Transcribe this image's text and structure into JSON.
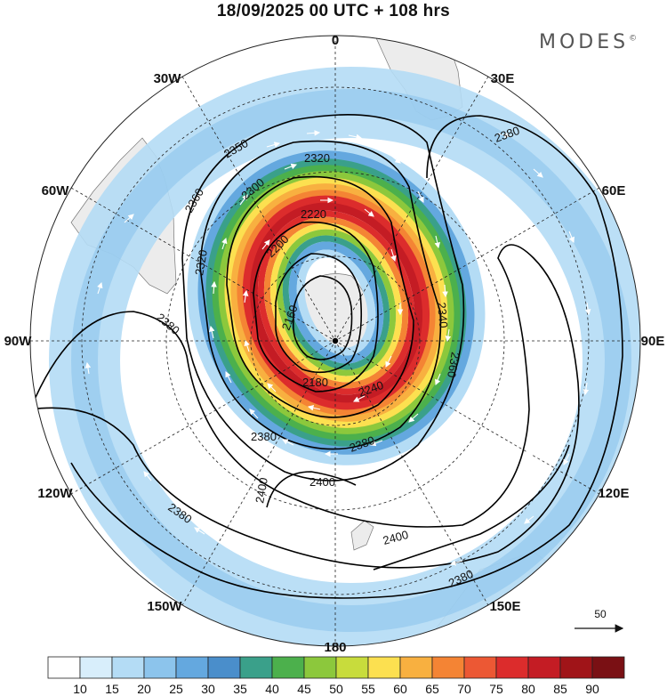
{
  "header": {
    "title": "18/09/2025  00 UTC  + 108 hrs",
    "brand": "MODES",
    "brand_mark": "©"
  },
  "map": {
    "projection": "south polar stereographic",
    "longitude_labels": [
      "0",
      "30E",
      "60E",
      "90E",
      "120E",
      "150E",
      "180",
      "150W",
      "120W",
      "90W",
      "60W",
      "30W"
    ],
    "contour_labels": [
      "2160",
      "2180",
      "2200",
      "2220",
      "2240",
      "2260",
      "2280",
      "2300",
      "2320",
      "2340",
      "2350",
      "2360",
      "2380",
      "2400"
    ],
    "contour_labels_rendered": [
      {
        "text": "2350",
        "id": "c2350"
      },
      {
        "text": "2320",
        "id": "c2320"
      },
      {
        "text": "2300",
        "id": "c2300"
      },
      {
        "text": "2220",
        "id": "c2220"
      },
      {
        "text": "2200",
        "id": "c2200"
      },
      {
        "text": "2360",
        "id": "c2360a"
      },
      {
        "text": "2320",
        "id": "c2320b"
      },
      {
        "text": "2160",
        "id": "c2160"
      },
      {
        "text": "2180",
        "id": "c2180"
      },
      {
        "text": "2240",
        "id": "c2240"
      },
      {
        "text": "2340",
        "id": "c2340"
      },
      {
        "text": "2360",
        "id": "c2360b"
      },
      {
        "text": "2380",
        "id": "c2380a"
      },
      {
        "text": "2380",
        "id": "c2380b"
      },
      {
        "text": "2380",
        "id": "c2380c"
      },
      {
        "text": "2380",
        "id": "c2380d"
      },
      {
        "text": "2380",
        "id": "c2380e"
      },
      {
        "text": "2400",
        "id": "c2400a"
      },
      {
        "text": "2400",
        "id": "c2400b"
      },
      {
        "text": "2400",
        "id": "c2400c"
      }
    ],
    "wind_reference": "50"
  },
  "colorbar": {
    "labels": [
      "10",
      "15",
      "20",
      "25",
      "30",
      "35",
      "40",
      "45",
      "50",
      "55",
      "60",
      "65",
      "70",
      "75",
      "80",
      "85",
      "90"
    ],
    "colors": [
      "#ffffff",
      "#d8eefb",
      "#b4dcf5",
      "#8cc4ec",
      "#64a8df",
      "#4a8ecb",
      "#3aa08a",
      "#4cb04c",
      "#8cc83c",
      "#c8dc3c",
      "#fce050",
      "#f8b040",
      "#f48434",
      "#ec5834",
      "#dc2c2c",
      "#c41c24",
      "#a01418",
      "#7a1014"
    ]
  }
}
